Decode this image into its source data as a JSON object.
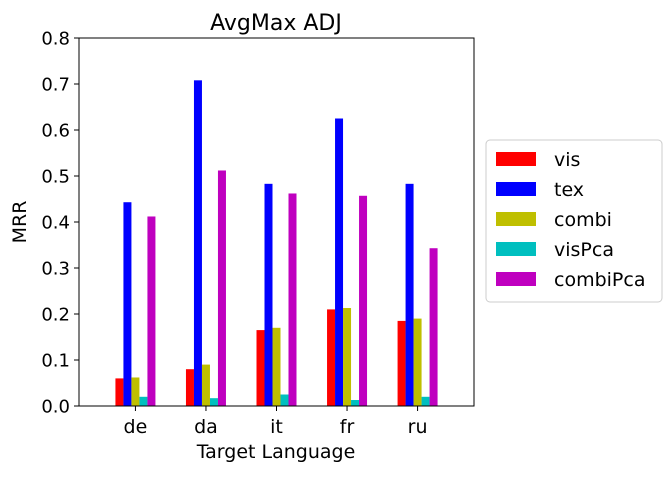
{
  "chart_data": {
    "type": "bar",
    "title": "AvgMax ADJ",
    "xlabel": "Target Language",
    "ylabel": "MRR",
    "categories": [
      "de",
      "da",
      "it",
      "fr",
      "ru"
    ],
    "ylim": [
      0.0,
      0.8
    ],
    "yticks": [
      "0.0",
      "0.1",
      "0.2",
      "0.3",
      "0.4",
      "0.5",
      "0.6",
      "0.7",
      "0.8"
    ],
    "grid": false,
    "legend_position": "right-outside",
    "series": [
      {
        "name": "vis",
        "color": "#ff0000",
        "values": [
          0.06,
          0.08,
          0.165,
          0.21,
          0.185
        ]
      },
      {
        "name": "tex",
        "color": "#0000ff",
        "values": [
          0.443,
          0.708,
          0.483,
          0.625,
          0.483
        ]
      },
      {
        "name": "combi",
        "color": "#bfbf00",
        "values": [
          0.062,
          0.09,
          0.17,
          0.213,
          0.19
        ]
      },
      {
        "name": "visPca",
        "color": "#00bfbf",
        "values": [
          0.02,
          0.017,
          0.025,
          0.013,
          0.02
        ]
      },
      {
        "name": "combiPca",
        "color": "#bf00bf",
        "values": [
          0.412,
          0.512,
          0.462,
          0.457,
          0.343
        ]
      }
    ]
  }
}
